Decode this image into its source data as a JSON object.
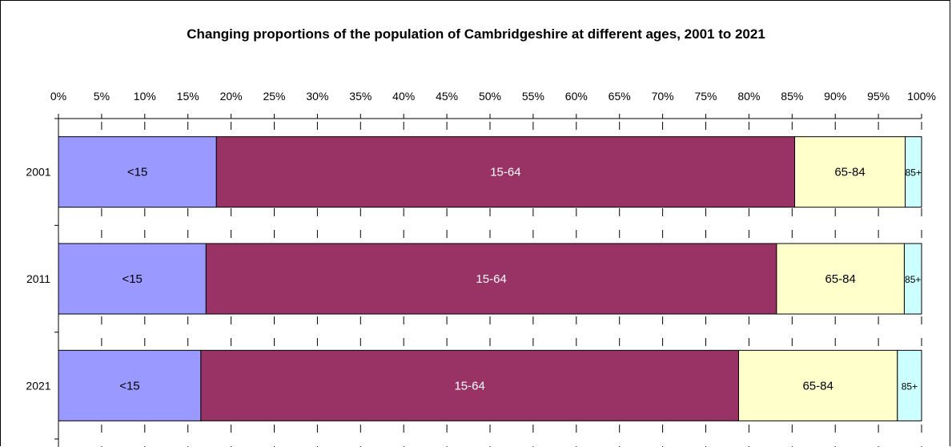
{
  "chart_data": {
    "type": "bar",
    "orientation": "horizontal",
    "stacked": "percent",
    "title": "Changing proportions of the population of Cambridgeshire at different ages, 2001 to 2021",
    "categories": [
      "2001",
      "2011",
      "2021"
    ],
    "xlim": [
      0,
      100
    ],
    "x_ticks": [
      "0%",
      "5%",
      "10%",
      "15%",
      "20%",
      "25%",
      "30%",
      "35%",
      "40%",
      "45%",
      "50%",
      "55%",
      "60%",
      "65%",
      "70%",
      "75%",
      "80%",
      "85%",
      "90%",
      "95%",
      "100%"
    ],
    "x_axis_position": "top",
    "grid": "vertical dashed",
    "legend": "none (segment labels inside bars)",
    "series": [
      {
        "name": "<15",
        "color": "#9999FF",
        "label_color": "#000000",
        "values": [
          18.3,
          17.1,
          16.5
        ]
      },
      {
        "name": "15-64",
        "color": "#993366",
        "label_color": "#ffffff",
        "values": [
          67.0,
          66.1,
          62.3
        ]
      },
      {
        "name": "65-84",
        "color": "#FFFFCC",
        "label_color": "#000000",
        "values": [
          12.8,
          14.8,
          18.4
        ]
      },
      {
        "name": "85+",
        "color": "#CCFFFF",
        "label_color": "#000000",
        "values": [
          1.9,
          2.0,
          2.8
        ]
      }
    ]
  }
}
